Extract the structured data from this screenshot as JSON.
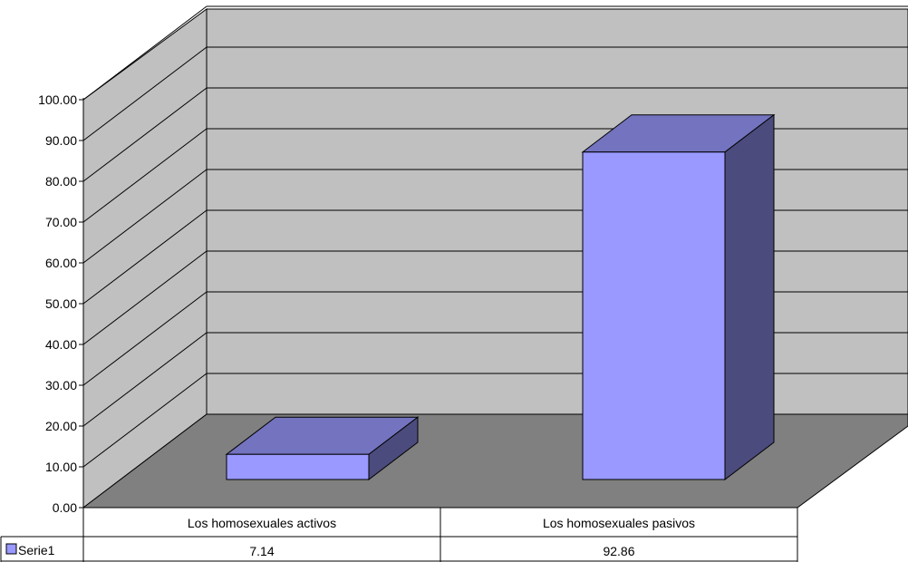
{
  "chart_data": {
    "type": "bar",
    "three_d": true,
    "categories": [
      "Los homosexuales activos",
      "Los homosexuales pasivos"
    ],
    "series": [
      {
        "name": "Serie1",
        "values": [
          7.14,
          92.86
        ],
        "color": "#9999ff",
        "top_color": "#7373bf",
        "side_color": "#4b4b7d"
      }
    ],
    "ylim": [
      0,
      100
    ],
    "yticks": [
      "0.00",
      "10.00",
      "20.00",
      "30.00",
      "40.00",
      "50.00",
      "60.00",
      "70.00",
      "80.00",
      "90.00",
      "100.00"
    ],
    "values_text": [
      "7.14",
      "92.86"
    ],
    "grid": true,
    "legend": "data-table-left",
    "wall_color": "#c0c0c0",
    "floor_color": "#808080"
  }
}
